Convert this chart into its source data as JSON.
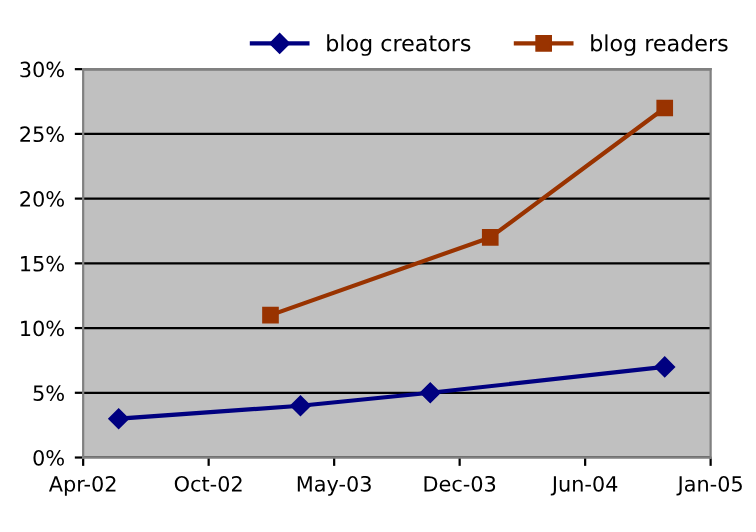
{
  "chart_data": {
    "type": "line",
    "series": [
      {
        "name": "blog creators",
        "color": "#000080",
        "marker": "diamond",
        "x": [
          "2002-05-29",
          "2003-03-22",
          "2003-10-20",
          "2004-11-06"
        ],
        "values": [
          3,
          4,
          5,
          7
        ]
      },
      {
        "name": "blog readers",
        "color": "#993300",
        "marker": "square",
        "x": [
          "2003-02-01",
          "2004-01-26",
          "2004-11-06"
        ],
        "values": [
          11,
          17,
          27
        ]
      }
    ],
    "xlim": [
      "2002-04-01",
      "2005-01-20"
    ],
    "xticks": [
      {
        "value": "2002-04-01",
        "label": "Apr-02"
      },
      {
        "value": "2002-10-23",
        "label": "Oct-02"
      },
      {
        "value": "2003-05-16",
        "label": "May-03"
      },
      {
        "value": "2003-12-07",
        "label": "Dec-03"
      },
      {
        "value": "2004-06-29",
        "label": "Jun-04"
      },
      {
        "value": "2005-01-20",
        "label": "Jan-05"
      }
    ],
    "ylim": [
      0,
      30
    ],
    "yticks": [
      {
        "value": 0,
        "label": "0%"
      },
      {
        "value": 5,
        "label": "5%"
      },
      {
        "value": 10,
        "label": "10%"
      },
      {
        "value": 15,
        "label": "15%"
      },
      {
        "value": 20,
        "label": "20%"
      },
      {
        "value": 25,
        "label": "25%"
      },
      {
        "value": 30,
        "label": "30%"
      }
    ],
    "grid": "y",
    "legend": "top",
    "line_style": "solid"
  }
}
